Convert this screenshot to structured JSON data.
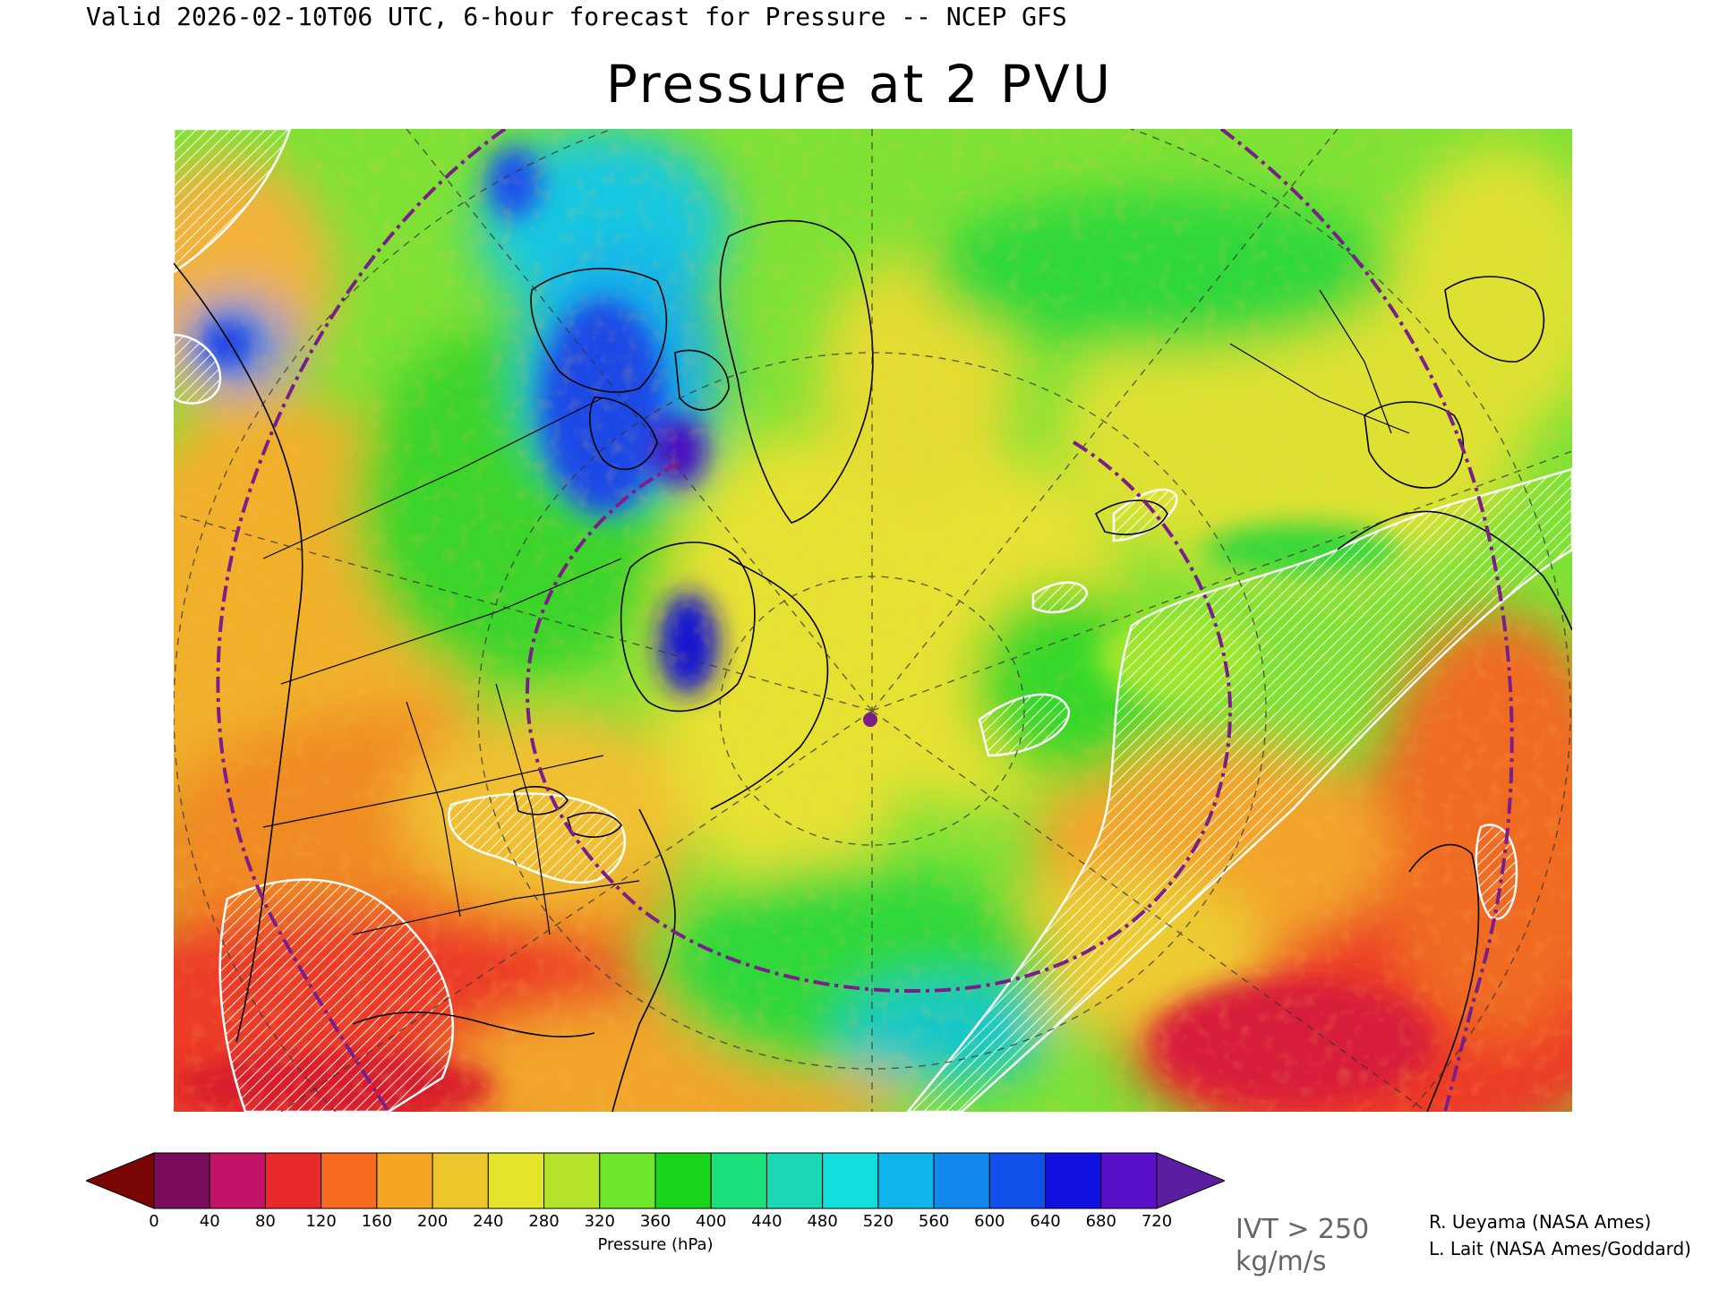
{
  "header": {
    "valid_line": "Valid 2026-02-10T06 UTC, 6-hour forecast for Pressure -- NCEP GFS",
    "title": "Pressure at 2 PVU"
  },
  "map": {
    "projection_center_marker_color": "#7a1e8a",
    "coastline_color": "#000000",
    "graticule_color": "#333333",
    "ring_color": "#7a1e8a",
    "ivt_hatch_color": "#ffffff"
  },
  "colorbar": {
    "label": "Pressure (hPa)",
    "ticks": [
      "0",
      "40",
      "80",
      "120",
      "160",
      "200",
      "240",
      "280",
      "320",
      "360",
      "400",
      "440",
      "480",
      "520",
      "560",
      "600",
      "640",
      "680",
      "720"
    ],
    "under_color": "#7a0505",
    "over_color": "#5a1fa0",
    "colors": [
      "#7a0c5e",
      "#c21367",
      "#e82a2a",
      "#f56a1f",
      "#f4a524",
      "#ecc62a",
      "#e4e42a",
      "#b4e42a",
      "#6ee62a",
      "#18d41a",
      "#1ae07a",
      "#1ad8b4",
      "#12dede",
      "#0fb4ea",
      "#1288ec",
      "#1250ec",
      "#1010e0",
      "#5a10c8"
    ]
  },
  "ivt": {
    "label": "IVT > 250 kg/m/s"
  },
  "credits": {
    "line1": "R. Ueyama (NASA Ames)",
    "line2": "L. Lait (NASA Ames/Goddard)"
  }
}
